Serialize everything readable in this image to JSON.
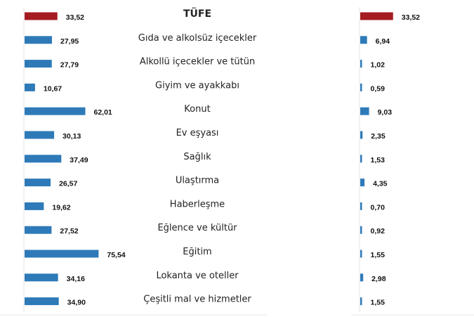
{
  "chart_data": [
    {
      "type": "bar",
      "orientation": "horizontal",
      "categories": [
        "TÜFE",
        "Gıda ve alkolsüz içecekler",
        "Alkollü içecekler ve tütün",
        "Giyim ve ayakkabı",
        "Konut",
        "Ev eşyası",
        "Sağlık",
        "Ulaştırma",
        "Haberleşme",
        "Eğlence ve kültür",
        "Eğitim",
        "Lokanta ve oteller",
        "Çeşitli mal ve hizmetler"
      ],
      "values": [
        33.52,
        27.95,
        27.79,
        10.67,
        62.01,
        30.13,
        37.49,
        26.57,
        19.62,
        27.52,
        75.54,
        34.16,
        34.9
      ],
      "value_labels": [
        "33,52",
        "27,95",
        "27,79",
        "10,67",
        "62,01",
        "30,13",
        "37,49",
        "26,57",
        "19,62",
        "27,52",
        "75,54",
        "34,16",
        "34,90"
      ],
      "grid": false,
      "legend": "none"
    },
    {
      "type": "bar",
      "orientation": "horizontal",
      "categories": [
        "TÜFE",
        "Gıda ve alkolsüz içecekler",
        "Alkollü içecekler ve tütün",
        "Giyim ve ayakkabı",
        "Konut",
        "Ev eşyası",
        "Sağlık",
        "Ulaştırma",
        "Haberleşme",
        "Eğlence ve kültür",
        "Eğitim",
        "Lokanta ve oteller",
        "Çeşitli mal ve hizmetler"
      ],
      "values": [
        33.52,
        6.94,
        1.02,
        0.59,
        9.03,
        2.35,
        1.53,
        4.35,
        0.7,
        0.92,
        1.55,
        2.98,
        1.55
      ],
      "value_labels": [
        "33,52",
        "6,94",
        "1,02",
        "0,59",
        "9,03",
        "2,35",
        "1,53",
        "4,35",
        "0,70",
        "0,92",
        "1,55",
        "2,98",
        "1,55"
      ],
      "grid": false,
      "legend": "none"
    }
  ],
  "colors": {
    "total": "#A51C22",
    "bar": "#2E7AB8"
  }
}
